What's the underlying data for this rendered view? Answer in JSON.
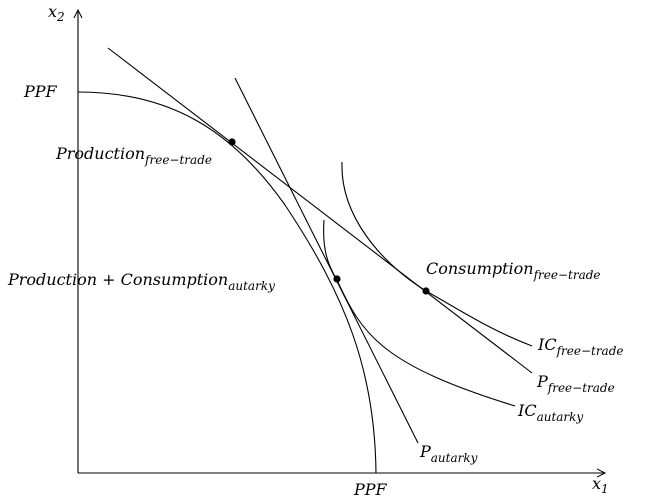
{
  "axes": {
    "x_label": "x",
    "x_sub": "1",
    "y_label": "x",
    "y_sub": "2"
  },
  "labels": {
    "ppf_y": "PPF",
    "ppf_x": "PPF",
    "production_free": {
      "main": "Production",
      "sub": "free−trade"
    },
    "autarky_point": {
      "main": "Production + Consumption",
      "sub": "autarky"
    },
    "consumption_free": {
      "main": "Consumption",
      "sub": "free−trade"
    },
    "ic_free": {
      "main": "IC",
      "sub": "free−trade"
    },
    "p_free": {
      "main": "P",
      "sub": "free−trade"
    },
    "ic_autarky": {
      "main": "IC",
      "sub": "autarky"
    },
    "p_autarky": {
      "main": "P",
      "sub": "autarky"
    }
  }
}
